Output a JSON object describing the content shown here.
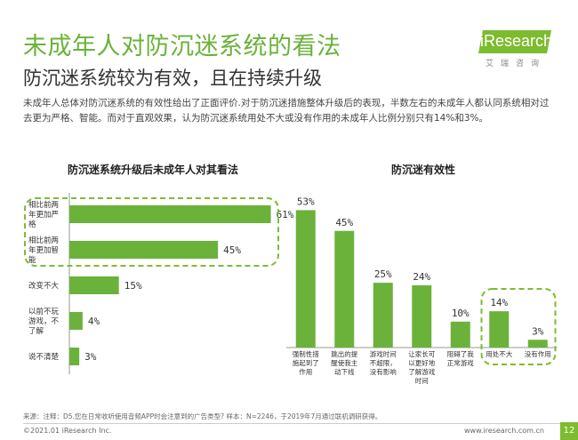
{
  "page": {
    "title": "未成年人对防沉迷系统的看法",
    "subtitle": "防沉迷系统较为有效，且在持续升级",
    "description": "未成年人总体对防沉迷系统的有效性给出了正面评价.对于防沉迷措施整体升级后的表现，半数左右的未成年人都认同系统相对过去更为严格、智能。而对于直观效果，认为防沉迷系统用处不大或没有作用的未成年人比例分别只有14%和3%。"
  },
  "logo": {
    "word": "iResearch",
    "sub": "艾瑞咨询"
  },
  "footer": {
    "note": "来源：注释：D5.您在日常收听使用音频APP时会注意到的广告类型? 样本：N=2246，于2019年7月通过联机调研获得。",
    "copyright": "©2021.01 iResearch Inc.",
    "url": "www.iresearch.com.cn",
    "page_number": "12"
  },
  "colors": {
    "bar": "#6bb23a",
    "highlight_border": "#7dbb2f",
    "axis": "#999999",
    "text": "#333333"
  },
  "chart_data": [
    {
      "type": "bar",
      "orientation": "horizontal",
      "title": "防沉迷系统升级后未成年人对其看法",
      "categories": [
        "相比前两年更加严格",
        "相比前两年更加智能",
        "改变不大",
        "以前不玩游戏，不了解",
        "说不清楚"
      ],
      "category_lines": [
        [
          "相比前两",
          "年更加严",
          "格"
        ],
        [
          "相比前两",
          "年更加智",
          "能"
        ],
        [
          "改变不大"
        ],
        [
          "以前不玩",
          "游戏，不",
          "了解"
        ],
        [
          "说不清楚"
        ]
      ],
      "values": [
        61,
        45,
        15,
        4,
        3
      ],
      "value_labels": [
        "61%",
        "45%",
        "15%",
        "4%",
        "3%"
      ],
      "xlim": [
        0,
        70
      ],
      "highlighted": [
        0,
        1
      ]
    },
    {
      "type": "bar",
      "orientation": "vertical",
      "title": "防沉迷有效性",
      "categories": [
        "强制性措施起到了作用",
        "跳出的提醒使我主动下线",
        "游戏时间不超限，没有影响",
        "让家长可以更好地了解游戏时间",
        "阻碍了我正常游戏",
        "用处不大",
        "没有作用"
      ],
      "category_lines": [
        [
          "强制性措",
          "施起到了",
          "作用"
        ],
        [
          "跳出的提",
          "醒使我主",
          "动下线"
        ],
        [
          "游戏时间",
          "不超限，",
          "没有影响"
        ],
        [
          "让家长可",
          "以更好地",
          "了解游戏",
          "时间"
        ],
        [
          "阻碍了我",
          "正常游戏"
        ],
        [
          "用处不大"
        ],
        [
          "没有作用"
        ]
      ],
      "values": [
        53,
        45,
        25,
        24,
        10,
        14,
        3
      ],
      "value_labels": [
        "53%",
        "45%",
        "25%",
        "24%",
        "10%",
        "14%",
        "3%"
      ],
      "ylim": [
        0,
        60
      ],
      "highlighted": [
        5,
        6
      ]
    }
  ]
}
